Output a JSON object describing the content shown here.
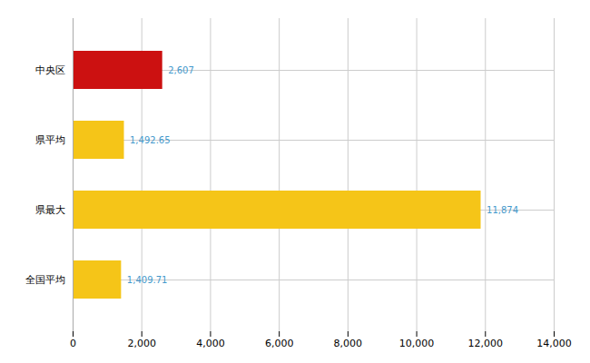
{
  "chart_data": {
    "type": "bar",
    "orientation": "horizontal",
    "categories": [
      "中央区",
      "県平均",
      "県最大",
      "全国平均"
    ],
    "values": [
      2607,
      1492.65,
      11874,
      1409.71
    ],
    "value_labels": [
      "2,607",
      "1,492.65",
      "11,874",
      "1,409.71"
    ],
    "colors": [
      "#cc1111",
      "#f5c518",
      "#f5c518",
      "#f5c518"
    ],
    "xlim": [
      0,
      14000
    ],
    "xticks": [
      0,
      {
        "value": 2000,
        "label": "2,000"
      },
      {
        "value": 4000,
        "label": "4,000"
      },
      {
        "value": 6000,
        "label": "6,000"
      },
      {
        "value": 8000,
        "label": "8,000"
      },
      {
        "value": 10000,
        "label": "10,000"
      },
      {
        "value": 12000,
        "label": "12,000"
      },
      {
        "value": 14000,
        "label": "14,000"
      }
    ],
    "grid": true,
    "data_labels": true
  }
}
